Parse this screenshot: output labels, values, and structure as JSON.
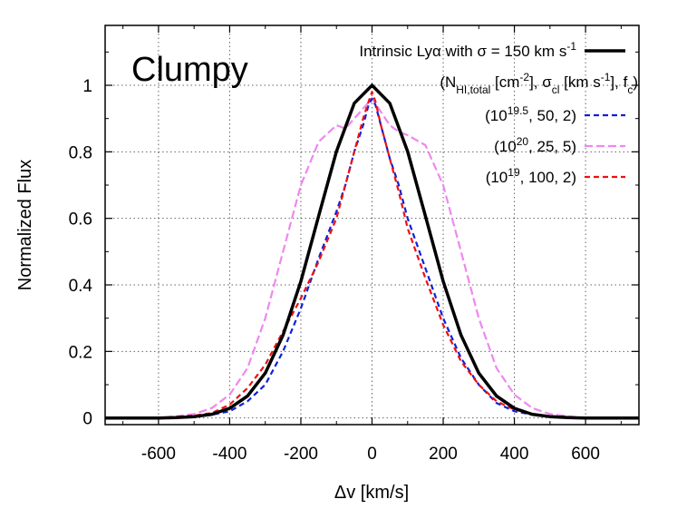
{
  "chart_data": {
    "type": "line",
    "annotation": "Clumpy",
    "xlabel": "Δv [km/s]",
    "ylabel": "Normalized Flux",
    "xlim": [
      -750,
      750
    ],
    "ylim": [
      -0.02,
      1.18
    ],
    "x_ticks": [
      -600,
      -400,
      -200,
      0,
      200,
      400,
      600
    ],
    "y_ticks": [
      0,
      0.2,
      0.4,
      0.6,
      0.8,
      1
    ],
    "x_tick_labels": [
      "-600",
      "-400",
      "-200",
      "0",
      "200",
      "400",
      "600"
    ],
    "y_tick_labels": [
      "0",
      "0.2",
      "0.4",
      "0.6",
      "0.8",
      "1"
    ],
    "grid": true,
    "legend_position": "top-right",
    "legend_header": {
      "main": "(N",
      "sub1": "HI,total",
      "mid1": " [cm",
      "sup1": "-2",
      "mid2": "], σ",
      "sub2": "cl",
      "mid3": " [km s",
      "sup2": "-1",
      "mid4": "], f",
      "sub3": "c",
      "end": ")"
    },
    "series": [
      {
        "key": "intrinsic",
        "label_main": "Intrinsic Lyα with σ = 150 km s",
        "label_sup": "-1",
        "label_end": "",
        "color": "#000000",
        "dash": "",
        "x": [
          -750,
          -700,
          -650,
          -600,
          -550,
          -500,
          -450,
          -400,
          -350,
          -300,
          -250,
          -200,
          -150,
          -100,
          -50,
          0,
          50,
          100,
          150,
          200,
          250,
          300,
          350,
          400,
          450,
          500,
          550,
          600,
          650,
          700,
          750
        ],
        "y": [
          0.0,
          0.0,
          0.0,
          0.0,
          0.001,
          0.004,
          0.011,
          0.029,
          0.066,
          0.135,
          0.249,
          0.411,
          0.607,
          0.801,
          0.946,
          1.0,
          0.946,
          0.801,
          0.607,
          0.411,
          0.249,
          0.135,
          0.066,
          0.029,
          0.011,
          0.004,
          0.001,
          0.0,
          0.0,
          0.0,
          0.0
        ]
      },
      {
        "key": "s1",
        "label_main": "(10",
        "label_sup": "19.5",
        "label_end": ", 50, 2)",
        "color": "#1020d8",
        "dash": "6 4",
        "x": [
          -750,
          -600,
          -500,
          -450,
          -400,
          -350,
          -300,
          -250,
          -200,
          -150,
          -100,
          -75,
          -50,
          -25,
          -10,
          0,
          10,
          25,
          50,
          75,
          100,
          150,
          200,
          250,
          300,
          350,
          400,
          450,
          500,
          600,
          750
        ],
        "y": [
          0.0,
          0.0,
          0.005,
          0.01,
          0.02,
          0.05,
          0.1,
          0.2,
          0.33,
          0.48,
          0.62,
          0.7,
          0.8,
          0.88,
          0.94,
          0.96,
          0.94,
          0.88,
          0.78,
          0.7,
          0.6,
          0.45,
          0.3,
          0.18,
          0.1,
          0.045,
          0.02,
          0.01,
          0.005,
          0.0,
          0.0
        ]
      },
      {
        "key": "s2",
        "label_main": "(10",
        "label_sup": "20",
        "label_end": ", 25, 5)",
        "color": "#ee88ee",
        "dash": "9 4",
        "x": [
          -750,
          -600,
          -550,
          -500,
          -450,
          -400,
          -350,
          -300,
          -250,
          -200,
          -150,
          -100,
          -75,
          -50,
          -25,
          0,
          25,
          50,
          75,
          100,
          150,
          200,
          250,
          300,
          350,
          400,
          450,
          500,
          550,
          600,
          750
        ],
        "y": [
          0.0,
          0.0,
          0.005,
          0.012,
          0.03,
          0.07,
          0.15,
          0.3,
          0.5,
          0.7,
          0.83,
          0.88,
          0.87,
          0.9,
          0.93,
          0.96,
          0.92,
          0.88,
          0.86,
          0.85,
          0.82,
          0.7,
          0.5,
          0.3,
          0.15,
          0.07,
          0.03,
          0.012,
          0.005,
          0.0,
          0.0
        ]
      },
      {
        "key": "s3",
        "label_main": "(10",
        "label_sup": "19",
        "label_end": ", 100, 2)",
        "color": "#ee1010",
        "dash": "6 4",
        "x": [
          -750,
          -600,
          -500,
          -450,
          -400,
          -350,
          -300,
          -250,
          -200,
          -150,
          -100,
          -75,
          -50,
          -25,
          -10,
          0,
          10,
          25,
          50,
          75,
          100,
          150,
          200,
          250,
          300,
          350,
          400,
          450,
          500,
          600,
          750
        ],
        "y": [
          0.0,
          0.0,
          0.007,
          0.015,
          0.04,
          0.09,
          0.16,
          0.26,
          0.36,
          0.47,
          0.6,
          0.7,
          0.8,
          0.9,
          0.95,
          0.98,
          0.95,
          0.88,
          0.78,
          0.68,
          0.57,
          0.42,
          0.28,
          0.17,
          0.1,
          0.05,
          0.025,
          0.012,
          0.006,
          0.0,
          0.0
        ]
      }
    ]
  }
}
